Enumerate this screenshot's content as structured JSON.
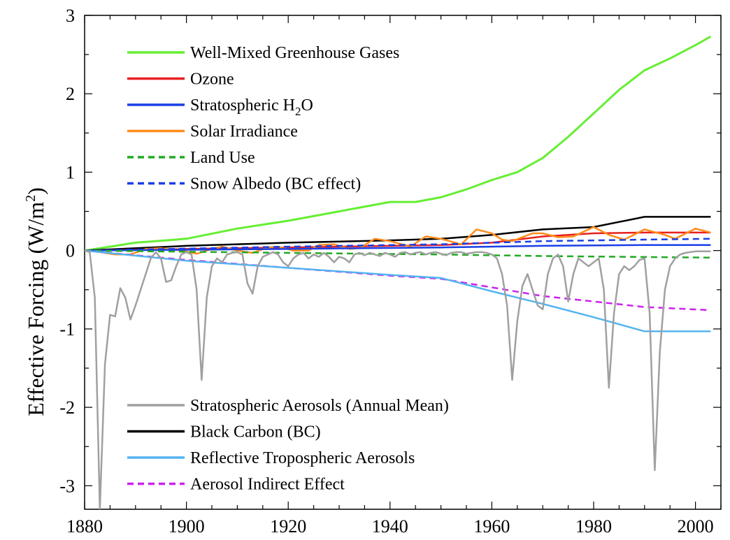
{
  "chart_data": {
    "type": "line",
    "title": "",
    "xlabel": "",
    "ylabel_text": "Effective Forcing (W/m",
    "ylabel_sup": "2",
    "ylabel_close": ")",
    "xlim": [
      1880,
      2005
    ],
    "ylim": [
      -3.3,
      3.0
    ],
    "xticks": [
      1880,
      1900,
      1920,
      1940,
      1960,
      1980,
      2000
    ],
    "yticks": [
      3,
      2,
      1,
      0,
      -1,
      -2,
      -3
    ],
    "legend_top": [
      {
        "name": "Well-Mixed Greenhouse Gases",
        "color": "#66ee33",
        "dash": false
      },
      {
        "name": "Ozone",
        "color": "#e82020",
        "dash": false
      },
      {
        "name": "Stratospheric H",
        "name_sub": "2",
        "name_tail": "O",
        "color": "#1a3fe6",
        "dash": false
      },
      {
        "name": "Solar Irradiance",
        "color": "#ff8c1a",
        "dash": false
      },
      {
        "name": "Land Use",
        "color": "#22aa22",
        "dash": true
      },
      {
        "name": "Snow Albedo (BC effect)",
        "color": "#1a3fe6",
        "dash": true
      }
    ],
    "legend_bottom": [
      {
        "name": "Stratospheric Aerosols (Annual Mean)",
        "color": "#a0a0a0",
        "dash": false
      },
      {
        "name": "Black Carbon (BC)",
        "color": "#000000",
        "dash": false
      },
      {
        "name": "Reflective Tropospheric Aerosols",
        "color": "#55b4f0",
        "dash": false
      },
      {
        "name": "Aerosol Indirect Effect",
        "color": "#cc22ee",
        "dash": true
      }
    ],
    "series": [
      {
        "key": "wmghg",
        "color": "#66ee33",
        "width": 3,
        "dash": false,
        "points": [
          [
            1880,
            0
          ],
          [
            1885,
            0.05
          ],
          [
            1890,
            0.1
          ],
          [
            1900,
            0.15
          ],
          [
            1910,
            0.28
          ],
          [
            1920,
            0.38
          ],
          [
            1930,
            0.5
          ],
          [
            1940,
            0.62
          ],
          [
            1945,
            0.62
          ],
          [
            1950,
            0.68
          ],
          [
            1955,
            0.78
          ],
          [
            1960,
            0.9
          ],
          [
            1965,
            1.0
          ],
          [
            1970,
            1.18
          ],
          [
            1975,
            1.45
          ],
          [
            1980,
            1.75
          ],
          [
            1985,
            2.05
          ],
          [
            1990,
            2.3
          ],
          [
            1995,
            2.45
          ],
          [
            2000,
            2.62
          ],
          [
            2003,
            2.73
          ]
        ]
      },
      {
        "key": "bc",
        "color": "#000000",
        "width": 2.5,
        "dash": false,
        "points": [
          [
            1880,
            0
          ],
          [
            1900,
            0.06
          ],
          [
            1920,
            0.1
          ],
          [
            1940,
            0.13
          ],
          [
            1950,
            0.15
          ],
          [
            1960,
            0.2
          ],
          [
            1970,
            0.27
          ],
          [
            1980,
            0.3
          ],
          [
            1990,
            0.43
          ],
          [
            2003,
            0.43
          ]
        ]
      },
      {
        "key": "ozone",
        "color": "#e82020",
        "width": 2.5,
        "dash": false,
        "points": [
          [
            1880,
            0
          ],
          [
            1900,
            0.02
          ],
          [
            1920,
            0.04
          ],
          [
            1940,
            0.06
          ],
          [
            1950,
            0.07
          ],
          [
            1960,
            0.1
          ],
          [
            1970,
            0.18
          ],
          [
            1980,
            0.22
          ],
          [
            1990,
            0.23
          ],
          [
            2003,
            0.23
          ]
        ]
      },
      {
        "key": "solar",
        "color": "#ff8c1a",
        "width": 2.5,
        "dash": false,
        "points": [
          [
            1880,
            0
          ],
          [
            1883,
            -0.02
          ],
          [
            1886,
            -0.05
          ],
          [
            1889,
            -0.05
          ],
          [
            1892,
            0.02
          ],
          [
            1895,
            0.03
          ],
          [
            1899,
            0.0
          ],
          [
            1902,
            -0.04
          ],
          [
            1905,
            0.02
          ],
          [
            1907,
            0.05
          ],
          [
            1910,
            0.0
          ],
          [
            1913,
            -0.03
          ],
          [
            1916,
            0.04
          ],
          [
            1918,
            0.05
          ],
          [
            1921,
            0.0
          ],
          [
            1924,
            0.0
          ],
          [
            1926,
            0.07
          ],
          [
            1929,
            0.08
          ],
          [
            1932,
            0.02
          ],
          [
            1934,
            0.03
          ],
          [
            1937,
            0.15
          ],
          [
            1940,
            0.12
          ],
          [
            1944,
            0.05
          ],
          [
            1947,
            0.18
          ],
          [
            1950,
            0.15
          ],
          [
            1954,
            0.08
          ],
          [
            1957,
            0.27
          ],
          [
            1960,
            0.22
          ],
          [
            1962,
            0.14
          ],
          [
            1964,
            0.12
          ],
          [
            1966,
            0.17
          ],
          [
            1968,
            0.22
          ],
          [
            1970,
            0.22
          ],
          [
            1973,
            0.17
          ],
          [
            1976,
            0.18
          ],
          [
            1980,
            0.3
          ],
          [
            1983,
            0.2
          ],
          [
            1986,
            0.14
          ],
          [
            1990,
            0.27
          ],
          [
            1994,
            0.2
          ],
          [
            1996,
            0.15
          ],
          [
            2000,
            0.28
          ],
          [
            2003,
            0.23
          ]
        ]
      },
      {
        "key": "h2o",
        "color": "#1a3fe6",
        "width": 2.5,
        "dash": false,
        "points": [
          [
            1880,
            0
          ],
          [
            1920,
            0.02
          ],
          [
            1950,
            0.04
          ],
          [
            1970,
            0.06
          ],
          [
            1990,
            0.07
          ],
          [
            2003,
            0.07
          ]
        ]
      },
      {
        "key": "snow",
        "color": "#1a3fe6",
        "width": 2.5,
        "dash": true,
        "points": [
          [
            1880,
            0
          ],
          [
            1920,
            0.05
          ],
          [
            1950,
            0.08
          ],
          [
            1970,
            0.12
          ],
          [
            1990,
            0.14
          ],
          [
            2003,
            0.15
          ]
        ]
      },
      {
        "key": "landuse",
        "color": "#22aa22",
        "width": 2.5,
        "dash": true,
        "points": [
          [
            1880,
            0
          ],
          [
            1920,
            -0.03
          ],
          [
            1950,
            -0.05
          ],
          [
            1970,
            -0.07
          ],
          [
            2003,
            -0.09
          ]
        ]
      },
      {
        "key": "aie",
        "color": "#cc22ee",
        "width": 2.5,
        "dash": true,
        "points": [
          [
            1880,
            0
          ],
          [
            1900,
            -0.12
          ],
          [
            1920,
            -0.22
          ],
          [
            1940,
            -0.32
          ],
          [
            1950,
            -0.36
          ],
          [
            1960,
            -0.47
          ],
          [
            1970,
            -0.58
          ],
          [
            1980,
            -0.65
          ],
          [
            1990,
            -0.72
          ],
          [
            2003,
            -0.76
          ]
        ]
      },
      {
        "key": "rta",
        "color": "#55b4f0",
        "width": 2.5,
        "dash": false,
        "points": [
          [
            1880,
            0
          ],
          [
            1900,
            -0.13
          ],
          [
            1920,
            -0.22
          ],
          [
            1940,
            -0.31
          ],
          [
            1950,
            -0.35
          ],
          [
            1960,
            -0.52
          ],
          [
            1970,
            -0.68
          ],
          [
            1980,
            -0.85
          ],
          [
            1990,
            -1.03
          ],
          [
            2003,
            -1.03
          ]
        ]
      },
      {
        "key": "strataer",
        "color": "#a0a0a0",
        "width": 2.5,
        "dash": false,
        "points": [
          [
            1880,
            0
          ],
          [
            1881,
            -0.02
          ],
          [
            1882,
            -0.6
          ],
          [
            1883,
            -3.3
          ],
          [
            1884,
            -1.45
          ],
          [
            1885,
            -0.82
          ],
          [
            1886,
            -0.84
          ],
          [
            1887,
            -0.48
          ],
          [
            1888,
            -0.6
          ],
          [
            1889,
            -0.88
          ],
          [
            1890,
            -0.7
          ],
          [
            1891,
            -0.5
          ],
          [
            1892,
            -0.3
          ],
          [
            1893,
            -0.1
          ],
          [
            1894,
            -0.02
          ],
          [
            1895,
            -0.1
          ],
          [
            1896,
            -0.4
          ],
          [
            1897,
            -0.38
          ],
          [
            1898,
            -0.2
          ],
          [
            1899,
            -0.05
          ],
          [
            1900,
            -0.02
          ],
          [
            1901,
            -0.05
          ],
          [
            1902,
            -0.5
          ],
          [
            1903,
            -1.65
          ],
          [
            1904,
            -0.6
          ],
          [
            1905,
            -0.2
          ],
          [
            1906,
            -0.1
          ],
          [
            1907,
            -0.15
          ],
          [
            1908,
            -0.05
          ],
          [
            1909,
            -0.03
          ],
          [
            1910,
            -0.02
          ],
          [
            1911,
            -0.05
          ],
          [
            1912,
            -0.42
          ],
          [
            1913,
            -0.55
          ],
          [
            1914,
            -0.2
          ],
          [
            1915,
            -0.08
          ],
          [
            1916,
            -0.05
          ],
          [
            1917,
            -0.02
          ],
          [
            1918,
            -0.05
          ],
          [
            1919,
            -0.15
          ],
          [
            1920,
            -0.2
          ],
          [
            1921,
            -0.1
          ],
          [
            1922,
            -0.05
          ],
          [
            1923,
            -0.03
          ],
          [
            1924,
            -0.1
          ],
          [
            1925,
            -0.05
          ],
          [
            1926,
            -0.08
          ],
          [
            1927,
            -0.03
          ],
          [
            1928,
            -0.08
          ],
          [
            1929,
            -0.15
          ],
          [
            1930,
            -0.08
          ],
          [
            1931,
            -0.1
          ],
          [
            1932,
            -0.15
          ],
          [
            1933,
            -0.05
          ],
          [
            1934,
            -0.03
          ],
          [
            1935,
            -0.06
          ],
          [
            1936,
            -0.03
          ],
          [
            1937,
            -0.05
          ],
          [
            1938,
            -0.07
          ],
          [
            1939,
            -0.03
          ],
          [
            1940,
            -0.05
          ],
          [
            1941,
            -0.08
          ],
          [
            1942,
            -0.03
          ],
          [
            1943,
            -0.02
          ],
          [
            1944,
            -0.05
          ],
          [
            1945,
            -0.03
          ],
          [
            1946,
            -0.02
          ],
          [
            1947,
            -0.05
          ],
          [
            1948,
            -0.03
          ],
          [
            1949,
            -0.02
          ],
          [
            1950,
            -0.04
          ],
          [
            1951,
            -0.06
          ],
          [
            1952,
            -0.03
          ],
          [
            1953,
            -0.02
          ],
          [
            1954,
            -0.02
          ],
          [
            1955,
            -0.04
          ],
          [
            1956,
            -0.03
          ],
          [
            1957,
            -0.02
          ],
          [
            1958,
            -0.02
          ],
          [
            1959,
            -0.03
          ],
          [
            1960,
            -0.05
          ],
          [
            1961,
            -0.1
          ],
          [
            1962,
            -0.3
          ],
          [
            1963,
            -0.7
          ],
          [
            1964,
            -1.65
          ],
          [
            1965,
            -0.9
          ],
          [
            1966,
            -0.45
          ],
          [
            1967,
            -0.3
          ],
          [
            1968,
            -0.5
          ],
          [
            1969,
            -0.7
          ],
          [
            1970,
            -0.75
          ],
          [
            1971,
            -0.3
          ],
          [
            1972,
            -0.1
          ],
          [
            1973,
            -0.05
          ],
          [
            1974,
            -0.2
          ],
          [
            1975,
            -0.65
          ],
          [
            1976,
            -0.3
          ],
          [
            1977,
            -0.1
          ],
          [
            1978,
            -0.15
          ],
          [
            1979,
            -0.2
          ],
          [
            1980,
            -0.15
          ],
          [
            1981,
            -0.1
          ],
          [
            1982,
            -0.5
          ],
          [
            1983,
            -1.75
          ],
          [
            1984,
            -0.8
          ],
          [
            1985,
            -0.3
          ],
          [
            1986,
            -0.2
          ],
          [
            1987,
            -0.25
          ],
          [
            1988,
            -0.2
          ],
          [
            1989,
            -0.12
          ],
          [
            1990,
            -0.1
          ],
          [
            1991,
            -0.8
          ],
          [
            1992,
            -2.8
          ],
          [
            1993,
            -1.3
          ],
          [
            1994,
            -0.5
          ],
          [
            1995,
            -0.2
          ],
          [
            1996,
            -0.1
          ],
          [
            1997,
            -0.05
          ],
          [
            1998,
            -0.03
          ],
          [
            1999,
            -0.02
          ],
          [
            2000,
            -0.01
          ],
          [
            2003,
            -0.01
          ]
        ]
      }
    ],
    "grid": false,
    "legend_position": "inside"
  }
}
